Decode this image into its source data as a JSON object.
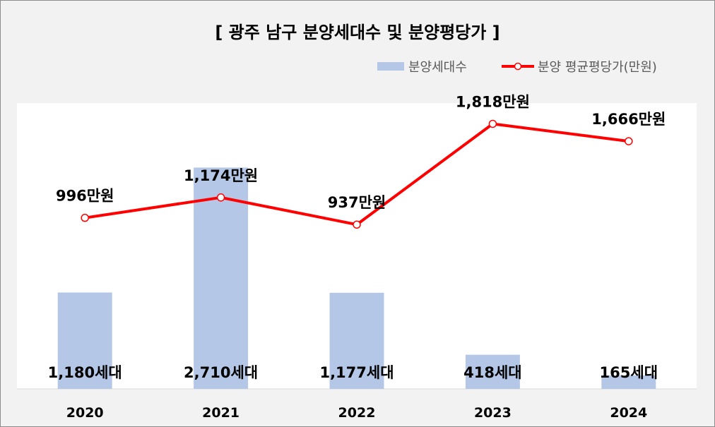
{
  "chart_data": {
    "type": "bar+line",
    "title": "[ 광주 남구 분양세대수 및 분양평당가 ]",
    "categories": [
      "2020",
      "2021",
      "2022",
      "2023",
      "2024"
    ],
    "series": [
      {
        "name": "분양세대수",
        "type": "bar",
        "axis": "left",
        "values": [
          1180,
          2710,
          1177,
          418,
          165
        ],
        "labels": [
          "1,180세대",
          "2,710세대",
          "1,177세대",
          "418세대",
          "165세대"
        ],
        "color": "#b4c7e7"
      },
      {
        "name": "분양 평균평당가(만원)",
        "type": "line",
        "axis": "right",
        "values": [
          996,
          1174,
          937,
          1818,
          1666
        ],
        "labels": [
          "996만원",
          "1,174만원",
          "937만원",
          "1,818만원",
          "1,666만원"
        ],
        "color": "#ff0000"
      }
    ],
    "ylim_left": [
      0,
      3500
    ],
    "ylim_right": [
      -500,
      2000
    ],
    "grid": false,
    "legend_position": "top-right",
    "plot_background": "#ffffff",
    "page_background": "#f2f2f2"
  }
}
